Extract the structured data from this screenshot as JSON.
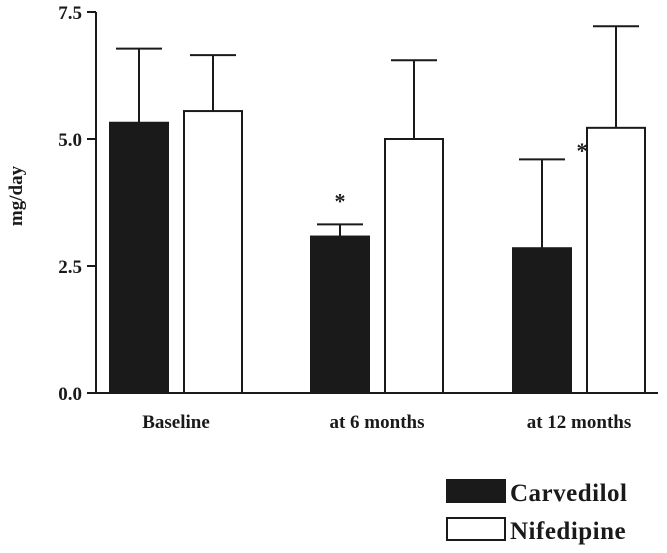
{
  "chart_data": {
    "type": "bar",
    "categories": [
      "Baseline",
      "at 6 months",
      "at 12 months"
    ],
    "series": [
      {
        "name": "Carvedilol",
        "values": [
          5.32,
          3.08,
          2.85
        ],
        "error_upper": [
          6.78,
          3.32,
          4.6
        ],
        "color": "#1a1a1a"
      },
      {
        "name": "Nifedipine",
        "values": [
          5.55,
          5.0,
          5.22
        ],
        "error_upper": [
          6.65,
          6.55,
          7.22
        ],
        "color": "#ffffff"
      }
    ],
    "ylabel": "mg/day",
    "xlabel": "",
    "title": "",
    "ylim": [
      0,
      7.5
    ],
    "yticks": [
      0.0,
      2.5,
      5.0,
      7.5
    ],
    "ytick_labels": [
      "0.0",
      "2.5",
      "5.0",
      "7.5"
    ],
    "significance_marker": "*",
    "significance": [
      {
        "category": "at 6 months",
        "series": "Carvedilol"
      },
      {
        "category": "at 12 months",
        "series": "Carvedilol"
      }
    ],
    "legend_position": "bottom-right",
    "grid": false
  }
}
